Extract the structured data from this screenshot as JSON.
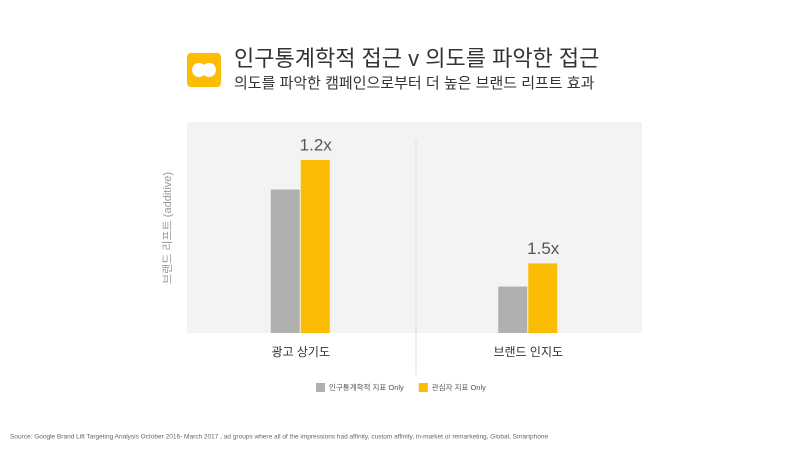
{
  "chart_data": {
    "type": "bar",
    "title": "인구통계학적 접근  v 의도를 파악한 접근",
    "subtitle": "의도를 파악한 캠페인으로부터 더 높은 브랜드 리프트 효과",
    "y_label": "브랜드 리프트 (additive)",
    "categories": [
      "광고 상기도",
      "브랜드 인지도"
    ],
    "series": [
      {
        "name": "인구통계학적 지표 Only",
        "color": "#b0b0b0",
        "values": [
          68,
          22
        ]
      },
      {
        "name": "관심자 지표 Only",
        "color": "#fbbc04",
        "values": [
          82,
          33
        ]
      }
    ],
    "annotations": [
      "1.2x",
      "1.5x"
    ],
    "ylim": [
      0,
      100
    ],
    "source": "Source: Google Brand Lift Targeting Analysis October 2016- March 2017 , ad groups where all of the impressions had affinity, custom affinity, in-market or remarketing, Global, Smartphone"
  }
}
